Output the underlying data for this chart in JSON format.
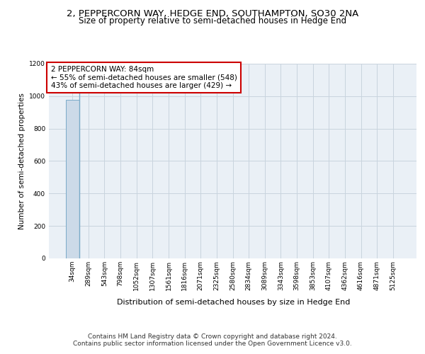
{
  "title": "2, PEPPERCORN WAY, HEDGE END, SOUTHAMPTON, SO30 2NA",
  "subtitle": "Size of property relative to semi-detached houses in Hedge End",
  "xlabel": "Distribution of semi-detached houses by size in Hedge End",
  "ylabel": "Number of semi-detached properties",
  "bin_labels": [
    "34sqm",
    "289sqm",
    "543sqm",
    "798sqm",
    "1052sqm",
    "1307sqm",
    "1561sqm",
    "1816sqm",
    "2071sqm",
    "2325sqm",
    "2580sqm",
    "2834sqm",
    "3089sqm",
    "3343sqm",
    "3598sqm",
    "3853sqm",
    "4107sqm",
    "4362sqm",
    "4616sqm",
    "4871sqm",
    "5125sqm"
  ],
  "bar_values": [
    977,
    0,
    0,
    0,
    0,
    0,
    0,
    0,
    0,
    0,
    0,
    0,
    0,
    0,
    0,
    0,
    0,
    0,
    0,
    0,
    0
  ],
  "bar_color": "#ccdae8",
  "bar_edge_color": "#7aaac8",
  "ylim": [
    0,
    1200
  ],
  "yticks": [
    0,
    200,
    400,
    600,
    800,
    1000,
    1200
  ],
  "grid_color": "#c8d4de",
  "background_color": "#eaf0f6",
  "annotation_text": "2 PEPPERCORN WAY: 84sqm\n← 55% of semi-detached houses are smaller (548)\n43% of semi-detached houses are larger (429) →",
  "annotation_box_color": "#ffffff",
  "annotation_border_color": "#cc0000",
  "property_line_color": "#7aaac8",
  "footer_text": "Contains HM Land Registry data © Crown copyright and database right 2024.\nContains public sector information licensed under the Open Government Licence v3.0.",
  "title_fontsize": 9.5,
  "subtitle_fontsize": 8.5,
  "xlabel_fontsize": 8,
  "ylabel_fontsize": 7.5,
  "annotation_fontsize": 7.5,
  "footer_fontsize": 6.5,
  "tick_fontsize": 6.5
}
